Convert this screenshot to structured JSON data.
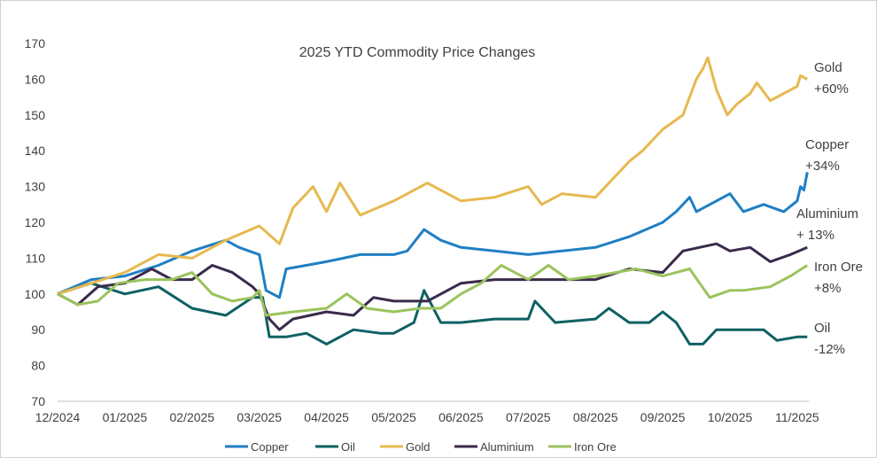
{
  "chart_data": {
    "type": "line",
    "title": "2025 YTD Commodity Price Changes",
    "xlabel": "",
    "ylabel": "",
    "ylim": [
      70,
      170
    ],
    "yticks": [
      "70",
      "80",
      "90",
      "100",
      "110",
      "120",
      "130",
      "140",
      "150",
      "160",
      "170"
    ],
    "xticks": [
      "12/2024",
      "01/2025",
      "02/2025",
      "03/2025",
      "04/2025",
      "05/2025",
      "06/2025",
      "07/2025",
      "08/2025",
      "09/2025",
      "10/2025",
      "11/2025"
    ],
    "x_unit": "months since 12/2024",
    "grid": false,
    "legend_position": "bottom",
    "series": [
      {
        "name": "Copper",
        "color": "#1f7fc4",
        "end_label": [
          "Copper",
          "+34%"
        ],
        "points": [
          [
            0,
            100
          ],
          [
            0.5,
            104
          ],
          [
            1,
            105
          ],
          [
            1.5,
            108
          ],
          [
            2,
            112
          ],
          [
            2.5,
            115
          ],
          [
            2.7,
            113
          ],
          [
            3,
            111
          ],
          [
            3.1,
            101
          ],
          [
            3.2,
            100
          ],
          [
            3.3,
            99
          ],
          [
            3.4,
            107
          ],
          [
            3.7,
            108
          ],
          [
            4,
            109
          ],
          [
            4.5,
            111
          ],
          [
            5,
            111
          ],
          [
            5.2,
            112
          ],
          [
            5.45,
            118
          ],
          [
            5.7,
            115
          ],
          [
            6,
            113
          ],
          [
            6.5,
            112
          ],
          [
            7,
            111
          ],
          [
            7.5,
            112
          ],
          [
            8,
            113
          ],
          [
            8.5,
            116
          ],
          [
            9,
            120
          ],
          [
            9.2,
            123
          ],
          [
            9.4,
            127
          ],
          [
            9.5,
            123
          ],
          [
            9.8,
            126
          ],
          [
            10,
            128
          ],
          [
            10.2,
            123
          ],
          [
            10.5,
            125
          ],
          [
            10.8,
            123
          ],
          [
            11,
            126
          ],
          [
            11.05,
            130
          ],
          [
            11.1,
            129
          ],
          [
            11.15,
            134
          ]
        ]
      },
      {
        "name": "Oil",
        "color": "#0f6063",
        "end_label": [
          "Oil",
          "-12%"
        ],
        "points": [
          [
            0,
            100
          ],
          [
            0.5,
            103
          ],
          [
            1,
            100
          ],
          [
            1.5,
            102
          ],
          [
            2,
            96
          ],
          [
            2.5,
            94
          ],
          [
            2.9,
            99
          ],
          [
            3.05,
            99
          ],
          [
            3.15,
            88
          ],
          [
            3.4,
            88
          ],
          [
            3.7,
            89
          ],
          [
            4,
            86
          ],
          [
            4.4,
            90
          ],
          [
            4.8,
            89
          ],
          [
            5,
            89
          ],
          [
            5.3,
            92
          ],
          [
            5.45,
            101
          ],
          [
            5.7,
            92
          ],
          [
            6,
            92
          ],
          [
            6.5,
            93
          ],
          [
            7,
            93
          ],
          [
            7.1,
            98
          ],
          [
            7.4,
            92
          ],
          [
            8,
            93
          ],
          [
            8.2,
            96
          ],
          [
            8.5,
            92
          ],
          [
            8.8,
            92
          ],
          [
            9,
            95
          ],
          [
            9.2,
            92
          ],
          [
            9.4,
            86
          ],
          [
            9.6,
            86
          ],
          [
            9.8,
            90
          ],
          [
            10,
            90
          ],
          [
            10.3,
            90
          ],
          [
            10.5,
            90
          ],
          [
            10.7,
            87
          ],
          [
            11,
            88
          ],
          [
            11.15,
            88
          ]
        ]
      },
      {
        "name": "Gold",
        "color": "#e6b94f",
        "end_label": [
          "Gold",
          "+60%"
        ],
        "points": [
          [
            0,
            100
          ],
          [
            0.5,
            103
          ],
          [
            1,
            106
          ],
          [
            1.5,
            111
          ],
          [
            2,
            110
          ],
          [
            2.5,
            115
          ],
          [
            3,
            119
          ],
          [
            3.3,
            114
          ],
          [
            3.5,
            124
          ],
          [
            3.8,
            130
          ],
          [
            4,
            123
          ],
          [
            4.2,
            131
          ],
          [
            4.5,
            122
          ],
          [
            5,
            126
          ],
          [
            5.5,
            131
          ],
          [
            6,
            126
          ],
          [
            6.5,
            127
          ],
          [
            7,
            130
          ],
          [
            7.2,
            125
          ],
          [
            7.5,
            128
          ],
          [
            8,
            127
          ],
          [
            8.3,
            133
          ],
          [
            8.5,
            137
          ],
          [
            8.7,
            140
          ],
          [
            9,
            146
          ],
          [
            9.3,
            150
          ],
          [
            9.5,
            160
          ],
          [
            9.6,
            163
          ],
          [
            9.67,
            166
          ],
          [
            9.8,
            157
          ],
          [
            9.96,
            150
          ],
          [
            10.1,
            153
          ],
          [
            10.3,
            156
          ],
          [
            10.4,
            159
          ],
          [
            10.6,
            154
          ],
          [
            11,
            158
          ],
          [
            11.05,
            161
          ],
          [
            11.15,
            160
          ]
        ]
      },
      {
        "name": "Aluminium",
        "color": "#3a2a4b",
        "end_label": [
          "Aluminium",
          "+ 13%"
        ],
        "points": [
          [
            0,
            100
          ],
          [
            0.3,
            97
          ],
          [
            0.6,
            102
          ],
          [
            1,
            103
          ],
          [
            1.4,
            107
          ],
          [
            1.7,
            104
          ],
          [
            2,
            104
          ],
          [
            2.3,
            108
          ],
          [
            2.6,
            106
          ],
          [
            2.9,
            102
          ],
          [
            3,
            100
          ],
          [
            3.15,
            93
          ],
          [
            3.3,
            90
          ],
          [
            3.5,
            93
          ],
          [
            4,
            95
          ],
          [
            4.4,
            94
          ],
          [
            4.7,
            99
          ],
          [
            5,
            98
          ],
          [
            5.5,
            98
          ],
          [
            6,
            103
          ],
          [
            6.5,
            104
          ],
          [
            7,
            104
          ],
          [
            7.5,
            104
          ],
          [
            8,
            104
          ],
          [
            8.5,
            107
          ],
          [
            9,
            106
          ],
          [
            9.3,
            112
          ],
          [
            9.8,
            114
          ],
          [
            10,
            112
          ],
          [
            10.3,
            113
          ],
          [
            10.6,
            109
          ],
          [
            10.9,
            111
          ],
          [
            11.15,
            113
          ]
        ]
      },
      {
        "name": "Iron Ore",
        "color": "#9bc35d",
        "end_label": [
          "Iron Ore",
          "+8%"
        ],
        "points": [
          [
            0,
            100
          ],
          [
            0.3,
            97
          ],
          [
            0.6,
            98
          ],
          [
            0.9,
            103
          ],
          [
            1.3,
            104
          ],
          [
            1.7,
            104
          ],
          [
            2,
            106
          ],
          [
            2.3,
            100
          ],
          [
            2.6,
            98
          ],
          [
            2.9,
            99
          ],
          [
            3,
            101
          ],
          [
            3.1,
            94
          ],
          [
            3.5,
            95
          ],
          [
            4,
            96
          ],
          [
            4.3,
            100
          ],
          [
            4.6,
            96
          ],
          [
            5,
            95
          ],
          [
            5.4,
            96
          ],
          [
            5.7,
            96
          ],
          [
            6,
            100
          ],
          [
            6.3,
            103
          ],
          [
            6.6,
            108
          ],
          [
            7,
            104
          ],
          [
            7.3,
            108
          ],
          [
            7.6,
            104
          ],
          [
            8,
            105
          ],
          [
            8.3,
            106
          ],
          [
            8.6,
            107
          ],
          [
            9,
            105
          ],
          [
            9.4,
            107
          ],
          [
            9.7,
            99
          ],
          [
            10,
            101
          ],
          [
            10.2,
            101
          ],
          [
            10.6,
            102
          ],
          [
            10.9,
            105
          ],
          [
            11.15,
            108
          ]
        ]
      }
    ]
  }
}
